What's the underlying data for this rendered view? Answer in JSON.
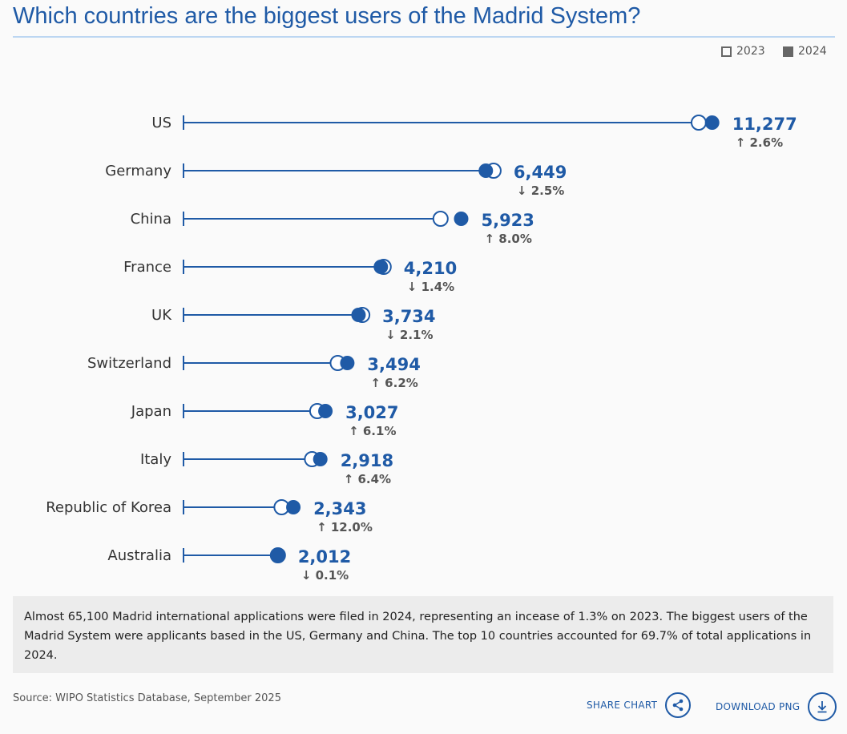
{
  "title": "Which countries are the biggest users of the Madrid System?",
  "legend": [
    {
      "label": "2023",
      "style": "outline"
    },
    {
      "label": "2024",
      "style": "filled"
    }
  ],
  "colors": {
    "accent": "#1f5aa6",
    "legend_fill": "#666666",
    "change_text": "#555555"
  },
  "chart_data": {
    "type": "dumbbell",
    "series": [
      {
        "name": "2023",
        "values": [
          10991,
          6614,
          5484,
          4270,
          3814,
          3290,
          2853,
          2742,
          2092,
          2014
        ]
      },
      {
        "name": "2024",
        "values": [
          11277,
          6449,
          5923,
          4210,
          3734,
          3494,
          3027,
          2918,
          2343,
          2012
        ]
      }
    ],
    "categories": [
      "US",
      "Germany",
      "China",
      "France",
      "UK",
      "Switzerland",
      "Japan",
      "Italy",
      "Republic of Korea",
      "Australia"
    ],
    "value_labels": [
      "11,277",
      "6,449",
      "5,923",
      "4,210",
      "3,734",
      "3,494",
      "3,027",
      "2,918",
      "2,343",
      "2,012"
    ],
    "changes": [
      {
        "dir": "up",
        "label": "2.6%"
      },
      {
        "dir": "down",
        "label": "2.5%"
      },
      {
        "dir": "up",
        "label": "8.0%"
      },
      {
        "dir": "down",
        "label": "1.4%"
      },
      {
        "dir": "down",
        "label": "2.1%"
      },
      {
        "dir": "up",
        "label": "6.2%"
      },
      {
        "dir": "up",
        "label": "6.1%"
      },
      {
        "dir": "up",
        "label": "6.4%"
      },
      {
        "dir": "up",
        "label": "12.0%"
      },
      {
        "dir": "down",
        "label": "0.1%"
      }
    ],
    "xlim": [
      0,
      11277
    ],
    "grid": false,
    "legend_placement": "top-right"
  },
  "summary": "Almost 65,100 Madrid international applications were filed in 2024, representing an incease of 1.3% on 2023. The biggest users of the Madrid System were applicants based in the US, Germany and China. The top 10 countries accounted for 69.7% of total applications in 2024.",
  "source": "Source: WIPO Statistics Database, September 2025",
  "buttons": {
    "share": "SHARE CHART",
    "download": "DOWNLOAD PNG"
  }
}
